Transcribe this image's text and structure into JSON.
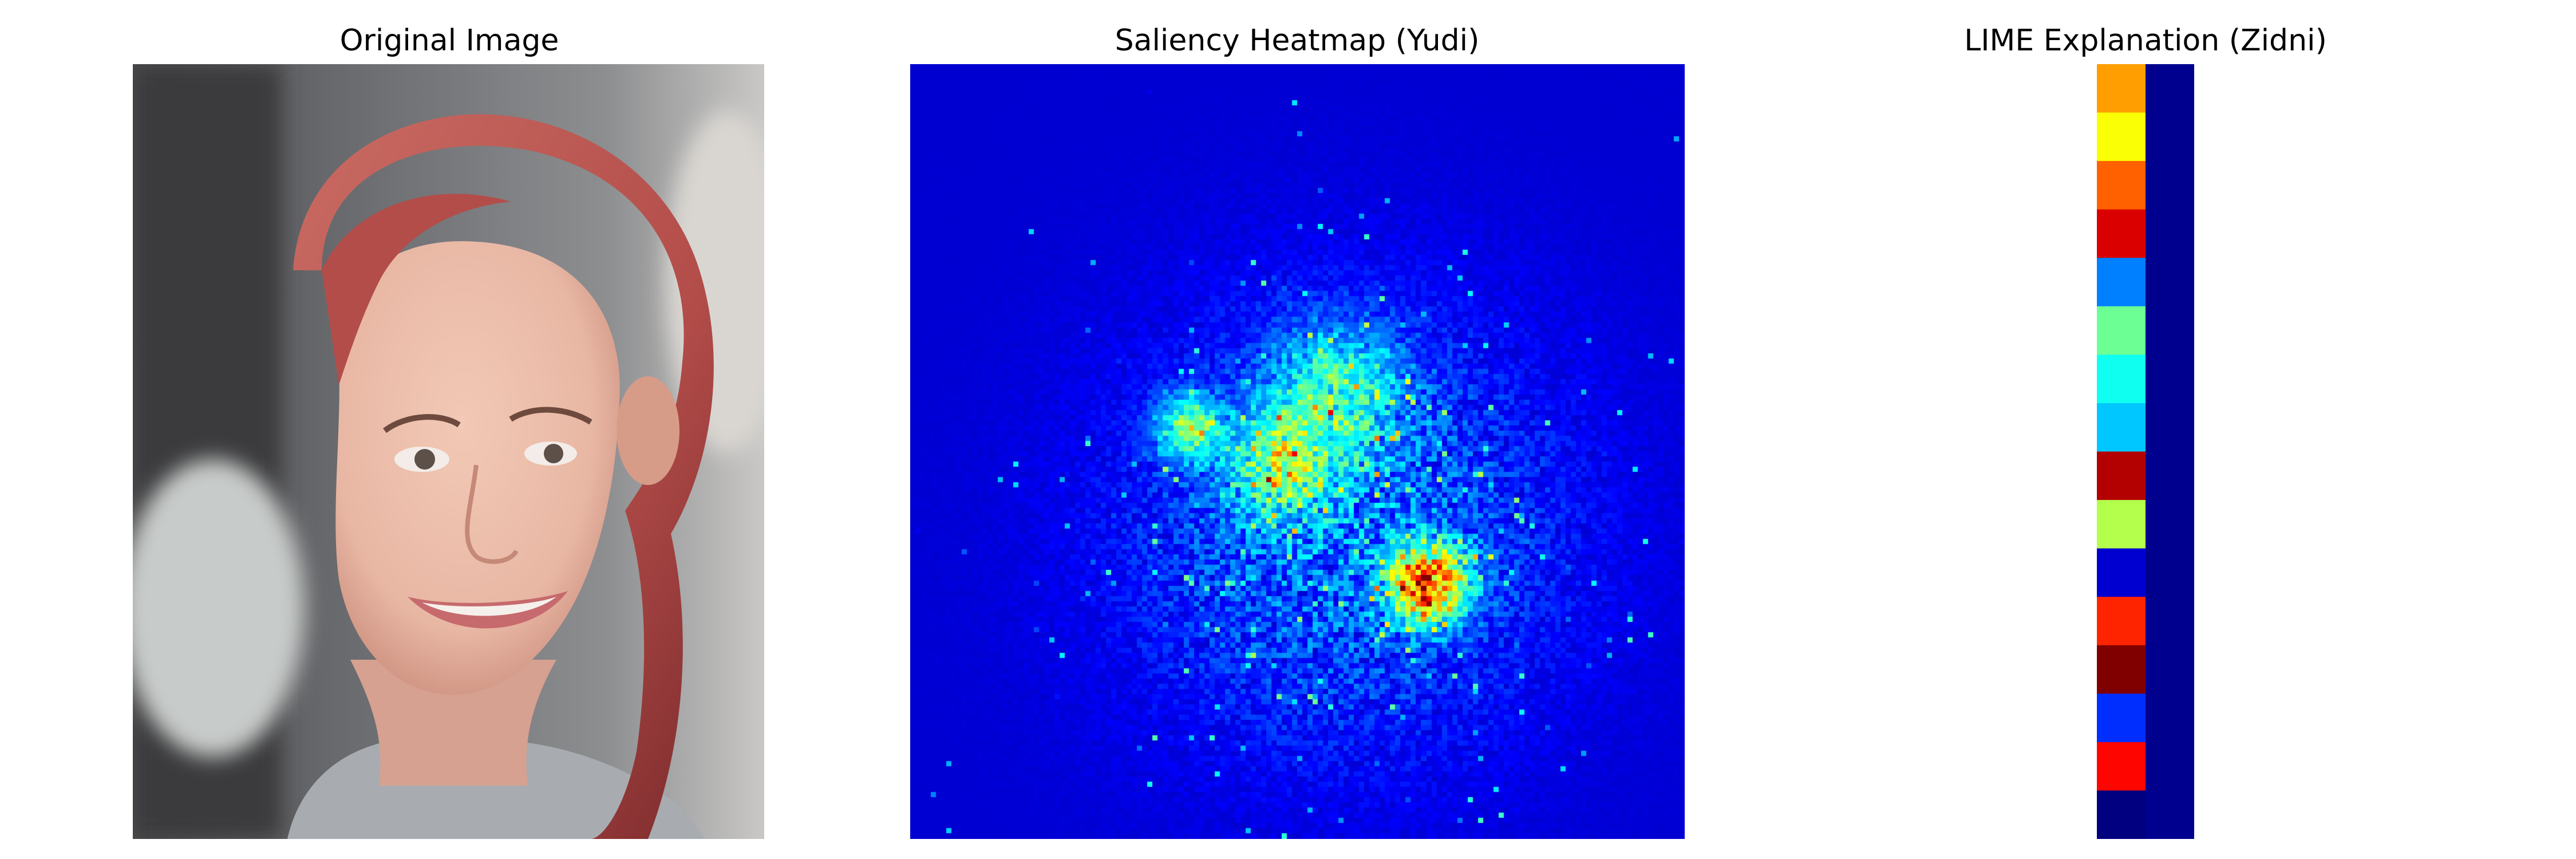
{
  "chart_data": [
    {
      "type": "image",
      "title": "Original Image",
      "image": {
        "content": "photograph of a smiling woman with red hair",
        "colors": {
          "background_dark": "#4d4b4d",
          "background_light": "#c9c8c6",
          "skin": "#e8b7a4",
          "skin_shadow": "#cc8e7d",
          "hair": "#b34d4a",
          "hair_dark": "#7c2a2c",
          "lips": "#c66a6d",
          "eyes": "#5d5048",
          "clothing": "#a8acb0"
        }
      }
    },
    {
      "type": "heatmap",
      "title": "Saliency Heatmap (Yudi)",
      "colormap": "jet",
      "value_range": [
        0,
        1
      ],
      "background_value": 0.08,
      "grid": false,
      "hotspots": [
        {
          "label": "central cluster",
          "value": 0.92
        },
        {
          "label": "left cheek cluster",
          "value": 0.48
        },
        {
          "label": "right cheek cluster",
          "value": 0.42
        },
        {
          "label": "upper face speckle",
          "value": 0.36
        }
      ]
    },
    {
      "type": "heatmap",
      "title": "LIME Explanation (Zidni)",
      "colormap": "jet",
      "columns": 2,
      "rows": 16,
      "cells": [
        [
          0.72,
          0.0
        ],
        [
          0.62,
          0.0
        ],
        [
          0.78,
          0.0
        ],
        [
          0.91,
          0.0
        ],
        [
          0.25,
          0.0
        ],
        [
          0.48,
          0.0
        ],
        [
          0.39,
          0.0
        ],
        [
          0.32,
          0.0
        ],
        [
          0.95,
          0.0
        ],
        [
          0.55,
          0.0
        ],
        [
          0.08,
          0.0
        ],
        [
          0.84,
          0.0
        ],
        [
          1.0,
          0.0
        ],
        [
          0.17,
          0.0
        ],
        [
          0.87,
          0.0
        ],
        [
          0.0,
          0.0
        ]
      ]
    }
  ]
}
